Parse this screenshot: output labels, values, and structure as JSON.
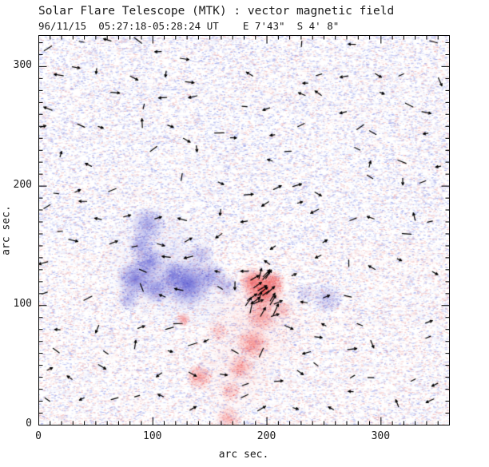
{
  "chart_data": {
    "type": "heatmap",
    "title": "Solar Flare Telescope (MTK) : vector magnetic field",
    "subtitle": "96/11/15  05:27:18-05:28:24 UT    E 7'43\"  S 4' 8\"",
    "xlabel": "arc sec.",
    "ylabel": "arc sec.",
    "xlim": [
      0,
      360
    ],
    "ylim": [
      0,
      326
    ],
    "xticks": [
      0,
      100,
      200,
      300
    ],
    "yticks": [
      0,
      100,
      200,
      300
    ],
    "minor_tick_interval": 10,
    "grid": false,
    "legend": "none",
    "colors": {
      "frame": "#000000",
      "text": "#1a1a1a",
      "positive_polarity": "#ee3c3c",
      "negative_polarity": "#5050d0",
      "noise_blue": "#96a0eb",
      "noise_pink": "#f0afaf",
      "arrow": "#000000",
      "background": "#ffffff"
    },
    "field_description": "longitudinal magnetogram: blue = negative polarity patches, red = positive polarity patches, short black arrows = transverse field vectors over speckled noise background",
    "blobs": [
      {
        "polarity": -1,
        "x": 96,
        "y": 168,
        "r": 12,
        "a": 0.5
      },
      {
        "polarity": -1,
        "x": 90,
        "y": 151,
        "r": 9,
        "a": 0.45
      },
      {
        "polarity": -1,
        "x": 97,
        "y": 136,
        "r": 11,
        "a": 0.6
      },
      {
        "polarity": -1,
        "x": 85,
        "y": 122,
        "r": 13,
        "a": 0.7
      },
      {
        "polarity": -1,
        "x": 103,
        "y": 114,
        "r": 11,
        "a": 0.6
      },
      {
        "polarity": -1,
        "x": 131,
        "y": 118,
        "r": 16,
        "a": 0.8
      },
      {
        "polarity": -1,
        "x": 118,
        "y": 126,
        "r": 10,
        "a": 0.55
      },
      {
        "polarity": -1,
        "x": 152,
        "y": 124,
        "r": 10,
        "a": 0.45
      },
      {
        "polarity": -1,
        "x": 165,
        "y": 116,
        "r": 8,
        "a": 0.35
      },
      {
        "polarity": -1,
        "x": 79,
        "y": 105,
        "r": 8,
        "a": 0.4
      },
      {
        "polarity": -1,
        "x": 143,
        "y": 142,
        "r": 9,
        "a": 0.3
      },
      {
        "polarity": -1,
        "x": 253,
        "y": 106,
        "r": 11,
        "a": 0.3
      },
      {
        "polarity": -1,
        "x": 234,
        "y": 110,
        "r": 7,
        "a": 0.22
      },
      {
        "polarity": -1,
        "x": 105,
        "y": 135,
        "r": 38,
        "a": 0.12
      },
      {
        "polarity": -1,
        "x": 135,
        "y": 115,
        "r": 28,
        "a": 0.1
      },
      {
        "polarity": 1,
        "x": 197,
        "y": 113,
        "r": 14,
        "a": 0.85
      },
      {
        "polarity": 1,
        "x": 187,
        "y": 121,
        "r": 9,
        "a": 0.5
      },
      {
        "polarity": 1,
        "x": 207,
        "y": 120,
        "r": 8,
        "a": 0.4
      },
      {
        "polarity": 1,
        "x": 196,
        "y": 91,
        "r": 11,
        "a": 0.45
      },
      {
        "polarity": 1,
        "x": 188,
        "y": 68,
        "r": 11,
        "a": 0.5
      },
      {
        "polarity": 1,
        "x": 177,
        "y": 48,
        "r": 9,
        "a": 0.4
      },
      {
        "polarity": 1,
        "x": 141,
        "y": 40,
        "r": 9,
        "a": 0.45
      },
      {
        "polarity": 1,
        "x": 127,
        "y": 88,
        "r": 5,
        "a": 0.5
      },
      {
        "polarity": 1,
        "x": 168,
        "y": 28,
        "r": 7,
        "a": 0.3
      },
      {
        "polarity": 1,
        "x": 166,
        "y": 5,
        "r": 9,
        "a": 0.35
      },
      {
        "polarity": 1,
        "x": 214,
        "y": 96,
        "r": 7,
        "a": 0.3
      },
      {
        "polarity": 1,
        "x": 158,
        "y": 78,
        "r": 7,
        "a": 0.25
      },
      {
        "polarity": 1,
        "x": 190,
        "y": 85,
        "r": 36,
        "a": 0.1
      },
      {
        "polarity": 1,
        "x": 172,
        "y": 40,
        "r": 26,
        "a": 0.08
      }
    ],
    "noise": {
      "seed": 99,
      "dash_count": 42000,
      "streak_count": 420,
      "mottle_count": 1400,
      "blue_fraction_top": 0.62,
      "blue_fraction_bottom": 0.46
    },
    "arrows": {
      "seed": 12345,
      "grid_step": 34,
      "jitter": 13,
      "skip_fraction": 0.22,
      "min_len": 6,
      "max_len": 12,
      "cluster": {
        "x": 197,
        "y": 110,
        "spread": 26,
        "count": 20,
        "min_len": 11,
        "max_len": 16
      }
    }
  }
}
